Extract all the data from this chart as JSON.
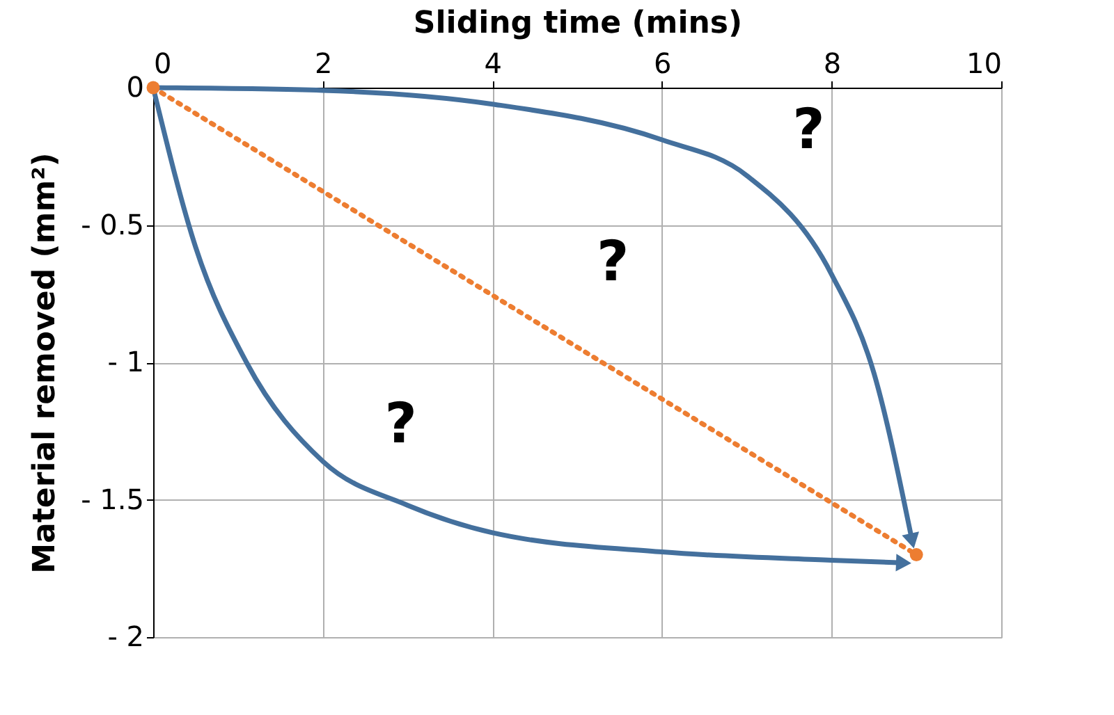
{
  "chart_data": {
    "type": "line",
    "xlabel": "Sliding time (mins)",
    "ylabel": "Material removed (mm²)",
    "xlim": [
      0,
      10
    ],
    "xticks": [
      0,
      2,
      4,
      6,
      8,
      10
    ],
    "ylim": [
      -2,
      0
    ],
    "yticks": [
      0,
      {
        "value": -0.5,
        "label": "- 0.5"
      },
      {
        "value": -1,
        "label": "- 1"
      },
      {
        "value": -1.5,
        "label": "- 1.5"
      },
      {
        "value": -2,
        "label": "- 2"
      }
    ],
    "grid": true,
    "series": [
      {
        "color": "#44709d",
        "line_style": "solid",
        "marker": "none",
        "x": [
          0,
          2,
          4,
          6,
          7,
          8,
          8.5,
          8.95
        ],
        "values": [
          0,
          -0.01,
          -0.06,
          -0.19,
          -0.32,
          -0.68,
          -1.04,
          -1.65
        ]
      },
      {
        "color": "#44709d",
        "line_style": "solid",
        "marker": "none",
        "x": [
          0,
          0.5,
          1.1,
          2,
          3,
          4,
          6,
          8,
          8.85
        ],
        "values": [
          0,
          -0.58,
          -1,
          -1.36,
          -1.52,
          -1.62,
          -1.69,
          -1.72,
          -1.73
        ]
      },
      {
        "color": "#ed7d31",
        "line_style": "dotted",
        "marker": "circle",
        "x": [
          0,
          9
        ],
        "values": [
          0,
          -1.7
        ]
      }
    ],
    "annotations": [
      "?",
      "?",
      "?"
    ]
  }
}
